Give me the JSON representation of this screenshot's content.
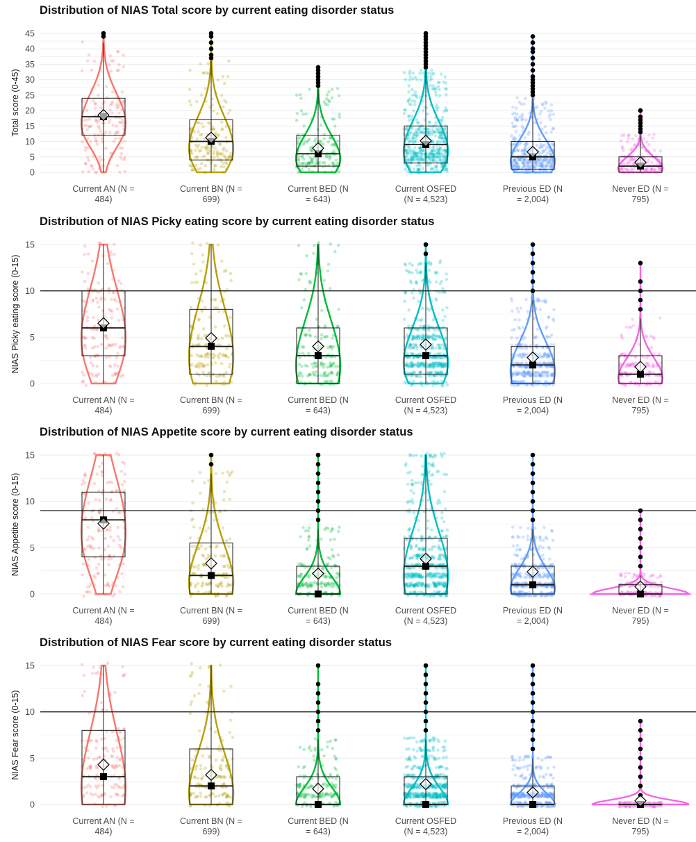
{
  "colors": {
    "groups": [
      "#F8766D",
      "#B79F00",
      "#00BA38",
      "#00BFC4",
      "#619CFF",
      "#F564E3"
    ],
    "grid": "#ebebeb",
    "threshold_line": "#1a1a1a"
  },
  "chart_data": [
    {
      "type": "box_violin_jitter",
      "title": "Distribution of NIAS Total score by current eating disorder status",
      "xlabel": "",
      "ylabel": "Total score (0-45)",
      "categories": [
        "Current AN (N = 484)",
        "Current BN (N = 699)",
        "Current BED (N = 643)",
        "Current OSFED (N = 4,523)",
        "Previous ED (N = 2,004)",
        "Never ED (N = 795)"
      ],
      "category_lines": [
        [
          "Current AN (N =",
          "484)"
        ],
        [
          "Current BN (N =",
          "699)"
        ],
        [
          "Current BED (N",
          "= 643)"
        ],
        [
          "Current OSFED",
          "(N = 4,523)"
        ],
        [
          "Previous ED (N",
          "= 2,004)"
        ],
        [
          "Never ED (N =",
          "795)"
        ]
      ],
      "ylim": [
        0,
        45
      ],
      "yticks": [
        0,
        5,
        10,
        15,
        20,
        25,
        30,
        35,
        40,
        45
      ],
      "threshold": null,
      "boxes": [
        {
          "q1": 12,
          "median": 18,
          "q3": 24,
          "whisker_low": 0,
          "whisker_high": 42,
          "mean": 18.5,
          "marker": 18,
          "outliers": [
            44,
            45
          ]
        },
        {
          "q1": 4,
          "median": 10,
          "q3": 17,
          "whisker_low": 0,
          "whisker_high": 36,
          "mean": 11.2,
          "marker": 10,
          "outliers": [
            37,
            38,
            40,
            42,
            44,
            45
          ]
        },
        {
          "q1": 2,
          "median": 6,
          "q3": 12,
          "whisker_low": 0,
          "whisker_high": 27,
          "mean": 7.8,
          "marker": 6,
          "outliers": [
            28,
            29,
            30,
            31,
            32,
            33,
            34
          ]
        },
        {
          "q1": 3,
          "median": 9,
          "q3": 15,
          "whisker_low": 0,
          "whisker_high": 33,
          "mean": 10.2,
          "marker": 9,
          "outliers": [
            34,
            35,
            36,
            37,
            38,
            39,
            40,
            41,
            42,
            43,
            44,
            45
          ]
        },
        {
          "q1": 1,
          "median": 5,
          "q3": 10,
          "whisker_low": 0,
          "whisker_high": 24,
          "mean": 6.6,
          "marker": 5,
          "outliers": [
            25,
            26,
            27,
            28,
            29,
            30,
            31,
            33,
            35,
            37,
            39,
            40,
            42,
            44
          ]
        },
        {
          "q1": 0,
          "median": 2,
          "q3": 5,
          "whisker_low": 0,
          "whisker_high": 12,
          "mean": 3.2,
          "marker": 2,
          "outliers": [
            13,
            14,
            15,
            16,
            17,
            18,
            20
          ]
        }
      ]
    },
    {
      "type": "box_violin_jitter",
      "title": "Distribution of NIAS Picky eating score by current eating disorder status",
      "xlabel": "",
      "ylabel": "NIAS Picky eating score (0-15)",
      "categories": [
        "Current AN (N = 484)",
        "Current BN (N = 699)",
        "Current BED (N = 643)",
        "Current OSFED (N = 4,523)",
        "Previous ED (N = 2,004)",
        "Never ED (N = 795)"
      ],
      "category_lines": [
        [
          "Current AN (N =",
          "484)"
        ],
        [
          "Current BN (N =",
          "699)"
        ],
        [
          "Current BED (N",
          "= 643)"
        ],
        [
          "Current OSFED",
          "(N = 4,523)"
        ],
        [
          "Previous ED (N",
          "= 2,004)"
        ],
        [
          "Never ED (N =",
          "795)"
        ]
      ],
      "ylim": [
        0,
        15
      ],
      "yticks": [
        0,
        5,
        10,
        15
      ],
      "threshold": 10,
      "boxes": [
        {
          "q1": 3,
          "median": 6,
          "q3": 10,
          "whisker_low": 0,
          "whisker_high": 15,
          "mean": 6.5,
          "marker": 6,
          "outliers": []
        },
        {
          "q1": 1,
          "median": 4,
          "q3": 8,
          "whisker_low": 0,
          "whisker_high": 15,
          "mean": 4.9,
          "marker": 4,
          "outliers": []
        },
        {
          "q1": 0,
          "median": 3,
          "q3": 6,
          "whisker_low": 0,
          "whisker_high": 15,
          "mean": 4.0,
          "marker": 3,
          "outliers": []
        },
        {
          "q1": 1,
          "median": 3,
          "q3": 6,
          "whisker_low": 0,
          "whisker_high": 13,
          "mean": 4.2,
          "marker": 3,
          "outliers": [
            14,
            15
          ]
        },
        {
          "q1": 0,
          "median": 2,
          "q3": 4,
          "whisker_low": 0,
          "whisker_high": 9,
          "mean": 2.8,
          "marker": 2,
          "outliers": [
            10,
            11,
            12,
            13,
            14,
            15
          ]
        },
        {
          "q1": 0,
          "median": 1,
          "q3": 3,
          "whisker_low": 0,
          "whisker_high": 7,
          "mean": 1.8,
          "marker": 1,
          "outliers": [
            8,
            9,
            10,
            11,
            13
          ]
        }
      ]
    },
    {
      "type": "box_violin_jitter",
      "title": "Distribution of NIAS Appetite score by current eating disorder status",
      "xlabel": "",
      "ylabel": "NIAS Appetite score (0-15)",
      "categories": [
        "Current AN (N = 484)",
        "Current BN (N = 699)",
        "Current BED (N = 643)",
        "Current OSFED (N = 4,523)",
        "Previous ED (N = 2,004)",
        "Never ED (N = 795)"
      ],
      "category_lines": [
        [
          "Current AN (N =",
          "484)"
        ],
        [
          "Current BN (N =",
          "699)"
        ],
        [
          "Current BED (N",
          "= 643)"
        ],
        [
          "Current OSFED",
          "(N = 4,523)"
        ],
        [
          "Previous ED (N",
          "= 2,004)"
        ],
        [
          "Never ED (N =",
          "795)"
        ]
      ],
      "ylim": [
        0,
        15
      ],
      "yticks": [
        0,
        5,
        10,
        15
      ],
      "threshold": 9,
      "boxes": [
        {
          "q1": 4,
          "median": 8,
          "q3": 11,
          "whisker_low": 0,
          "whisker_high": 15,
          "mean": 7.6,
          "marker": 8,
          "outliers": []
        },
        {
          "q1": 0,
          "median": 2,
          "q3": 5.5,
          "whisker_low": 0,
          "whisker_high": 13,
          "mean": 3.3,
          "marker": 2,
          "outliers": [
            14,
            15
          ]
        },
        {
          "q1": 0,
          "median": 0,
          "q3": 3,
          "whisker_low": 0,
          "whisker_high": 7,
          "mean": 2.2,
          "marker": 0,
          "outliers": [
            8,
            9,
            10,
            11,
            12,
            13,
            14,
            15
          ]
        },
        {
          "q1": 0,
          "median": 3,
          "q3": 6,
          "whisker_low": 0,
          "whisker_high": 15,
          "mean": 3.8,
          "marker": 3,
          "outliers": []
        },
        {
          "q1": 0,
          "median": 1,
          "q3": 3,
          "whisker_low": 0,
          "whisker_high": 7,
          "mean": 2.4,
          "marker": 1,
          "outliers": [
            8,
            9,
            10,
            11,
            12,
            13,
            14,
            15
          ]
        },
        {
          "q1": 0,
          "median": 0,
          "q3": 1,
          "whisker_low": 0,
          "whisker_high": 2,
          "mean": 0.8,
          "marker": 0,
          "outliers": [
            3,
            4,
            5,
            6,
            7,
            8,
            9
          ]
        }
      ]
    },
    {
      "type": "box_violin_jitter",
      "title": "Distribution of NIAS Fear score by current eating disorder status",
      "xlabel": "",
      "ylabel": "NIAS Fear score (0-15)",
      "categories": [
        "Current AN (N = 484)",
        "Current BN (N = 699)",
        "Current BED (N = 643)",
        "Current OSFED (N = 4,523)",
        "Previous ED (N = 2,004)",
        "Never ED (N = 795)"
      ],
      "category_lines": [
        [
          "Current AN (N =",
          "484)"
        ],
        [
          "Current BN (N =",
          "699)"
        ],
        [
          "Current BED (N",
          "= 643)"
        ],
        [
          "Current OSFED",
          "(N = 4,523)"
        ],
        [
          "Previous ED (N",
          "= 2,004)"
        ],
        [
          "Never ED (N =",
          "795)"
        ]
      ],
      "ylim": [
        0,
        15
      ],
      "yticks": [
        0,
        5,
        10,
        15
      ],
      "threshold": 10,
      "boxes": [
        {
          "q1": 0,
          "median": 3,
          "q3": 8,
          "whisker_low": 0,
          "whisker_high": 15,
          "mean": 4.3,
          "marker": 3,
          "outliers": []
        },
        {
          "q1": 0,
          "median": 2,
          "q3": 6,
          "whisker_low": 0,
          "whisker_high": 15,
          "mean": 3.2,
          "marker": 2,
          "outliers": []
        },
        {
          "q1": 0,
          "median": 0,
          "q3": 3,
          "whisker_low": 0,
          "whisker_high": 7,
          "mean": 1.7,
          "marker": 0,
          "outliers": [
            8,
            9,
            10,
            11,
            12,
            13,
            15
          ]
        },
        {
          "q1": 0,
          "median": 0,
          "q3": 3,
          "whisker_low": 0,
          "whisker_high": 7,
          "mean": 2.2,
          "marker": 0,
          "outliers": [
            8,
            9,
            10,
            11,
            12,
            13,
            14,
            15
          ]
        },
        {
          "q1": 0,
          "median": 0,
          "q3": 2,
          "whisker_low": 0,
          "whisker_high": 5,
          "mean": 1.3,
          "marker": 0,
          "outliers": [
            6,
            7,
            8,
            9,
            10,
            11,
            12,
            13,
            14,
            15
          ]
        },
        {
          "q1": 0,
          "median": 0,
          "q3": 0,
          "whisker_low": 0,
          "whisker_high": 0,
          "mean": 0.4,
          "marker": 0,
          "outliers": [
            1,
            2,
            3,
            4,
            5,
            6,
            7,
            8,
            9
          ]
        }
      ]
    }
  ]
}
